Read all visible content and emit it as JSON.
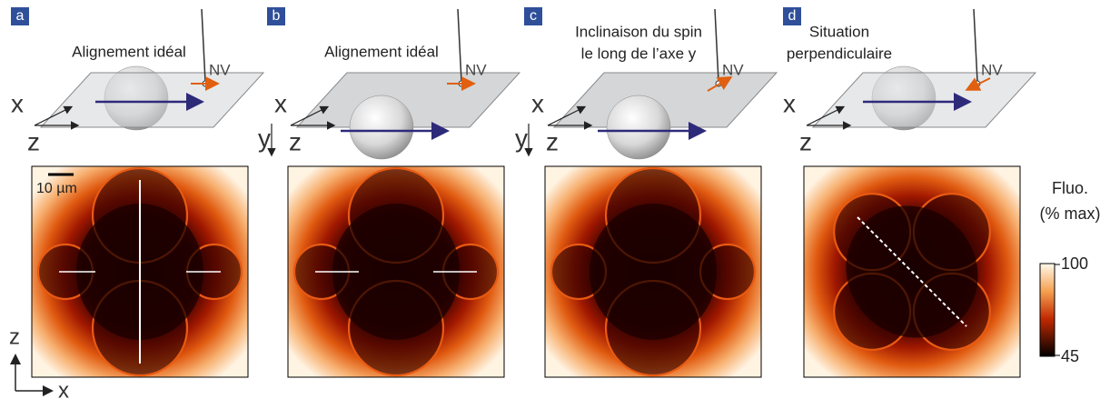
{
  "panels": [
    {
      "label": "a",
      "title": [
        "Alignement idéal"
      ],
      "nv": "NV",
      "axes": [
        "x",
        "z"
      ]
    },
    {
      "label": "b",
      "title": [
        "Alignement idéal"
      ],
      "nv": "NV",
      "axes": [
        "x",
        "y",
        "z"
      ]
    },
    {
      "label": "c",
      "title": [
        "Inclinaison du spin",
        "le long de l’axe y"
      ],
      "nv": "NV",
      "axes": [
        "x",
        "y",
        "z"
      ]
    },
    {
      "label": "d",
      "title": [
        "Situation",
        "perpendiculaire"
      ],
      "nv": "NV",
      "axes": [
        "x",
        "z"
      ]
    }
  ],
  "scale_bar": "10 µm",
  "image_axes": {
    "vertical": "z",
    "horizontal": "x"
  },
  "colorbar": {
    "title": [
      "Fluo.",
      "(% max)"
    ],
    "max": 100,
    "min": 45
  }
}
